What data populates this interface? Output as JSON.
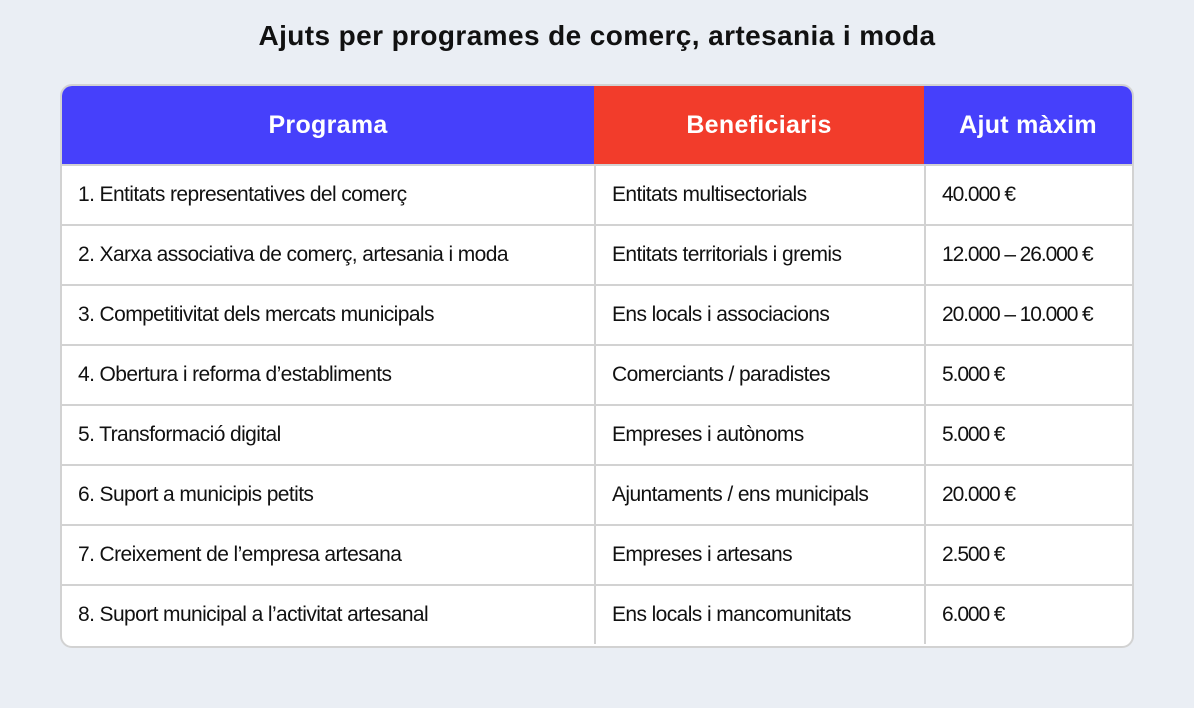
{
  "title": "Ajuts per programes de comerç, artesania i moda",
  "colors": {
    "header_blue": "#4640fb",
    "header_red": "#f23c2b",
    "background": "#eaeef4"
  },
  "table": {
    "headers": [
      "Programa",
      "Beneficiaris",
      "Ajut màxim"
    ],
    "rows": [
      [
        "1. Entitats representatives del comerç",
        "Entitats multisectorials",
        "40.000 €"
      ],
      [
        "2. Xarxa associativa de comerç, artesania i moda",
        "Entitats territorials i gremis",
        "12.000 – 26.000 €"
      ],
      [
        "3. Competitivitat dels mercats municipals",
        "Ens locals i associacions",
        "20.000 – 10.000 €"
      ],
      [
        "4. Obertura i reforma d’establiments",
        "Comerciants / paradistes",
        "5.000 €"
      ],
      [
        "5. Transformació digital",
        "Empreses i autònoms",
        "5.000 €"
      ],
      [
        "6. Suport a municipis petits",
        "Ajuntaments / ens municipals",
        "20.000 €"
      ],
      [
        "7. Creixement de l’empresa artesana",
        "Empreses i artesans",
        "2.500 €"
      ],
      [
        "8. Suport municipal a l’activitat artesanal",
        "Ens locals i mancomunitats",
        "6.000 €"
      ]
    ]
  }
}
